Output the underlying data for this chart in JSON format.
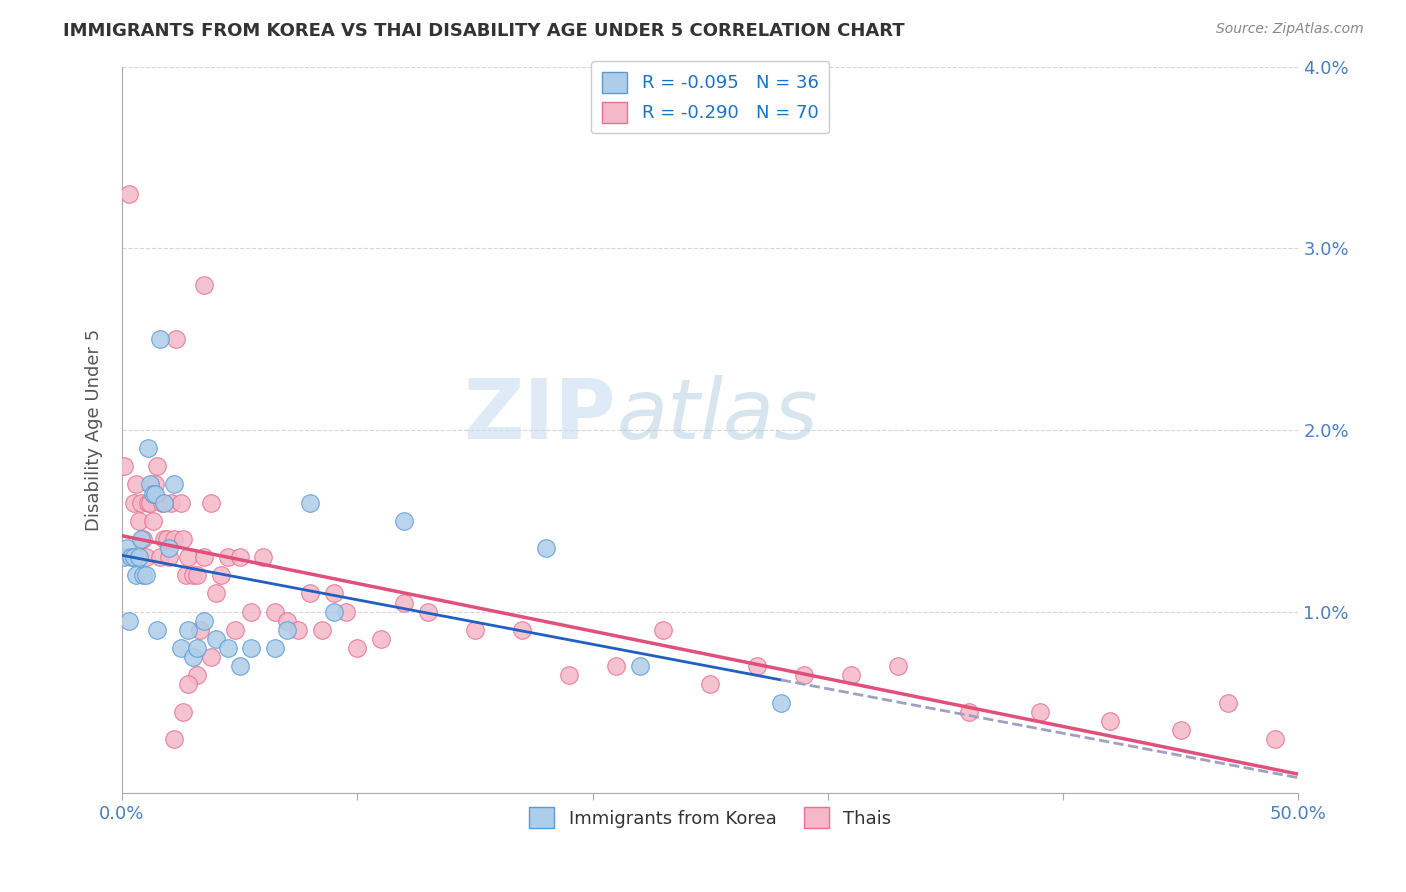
{
  "title": "IMMIGRANTS FROM KOREA VS THAI DISABILITY AGE UNDER 5 CORRELATION CHART",
  "source": "Source: ZipAtlas.com",
  "ylabel": "Disability Age Under 5",
  "x_min": 0.0,
  "x_max": 0.5,
  "y_min": 0.0,
  "y_max": 0.04,
  "x_ticks": [
    0.0,
    0.1,
    0.2,
    0.3,
    0.4,
    0.5
  ],
  "x_tick_labels_bottom": [
    "0.0%",
    "",
    "",
    "",
    "",
    "50.0%"
  ],
  "y_ticks": [
    0.0,
    0.01,
    0.02,
    0.03,
    0.04
  ],
  "y_tick_labels_right": [
    "",
    "1.0%",
    "2.0%",
    "3.0%",
    "4.0%"
  ],
  "korea_color": "#aecde8",
  "korea_edge_color": "#5b9bd5",
  "thai_color": "#f4b8c8",
  "thai_edge_color": "#e87090",
  "korea_line_color": "#2060c0",
  "thai_line_color": "#e0507a",
  "korea_dash_color": "#a0a0c0",
  "korea_R": -0.095,
  "korea_N": 36,
  "thai_R": -0.29,
  "thai_N": 70,
  "legend_label_korea": "Immigrants from Korea",
  "legend_label_thai": "Thais",
  "watermark_zip": "ZIP",
  "watermark_atlas": "atlas",
  "korea_scatter_x": [
    0.001,
    0.002,
    0.003,
    0.004,
    0.005,
    0.006,
    0.007,
    0.008,
    0.009,
    0.01,
    0.011,
    0.012,
    0.013,
    0.014,
    0.015,
    0.016,
    0.018,
    0.02,
    0.022,
    0.025,
    0.028,
    0.03,
    0.032,
    0.035,
    0.04,
    0.045,
    0.05,
    0.055,
    0.065,
    0.07,
    0.08,
    0.09,
    0.12,
    0.18,
    0.22,
    0.28
  ],
  "korea_scatter_y": [
    0.013,
    0.0135,
    0.0095,
    0.013,
    0.013,
    0.012,
    0.013,
    0.014,
    0.012,
    0.012,
    0.019,
    0.017,
    0.0165,
    0.0165,
    0.009,
    0.025,
    0.016,
    0.0135,
    0.017,
    0.008,
    0.009,
    0.0075,
    0.008,
    0.0095,
    0.0085,
    0.008,
    0.007,
    0.008,
    0.008,
    0.009,
    0.016,
    0.01,
    0.015,
    0.0135,
    0.007,
    0.005
  ],
  "thai_scatter_x": [
    0.001,
    0.003,
    0.005,
    0.006,
    0.007,
    0.008,
    0.009,
    0.01,
    0.011,
    0.012,
    0.013,
    0.014,
    0.015,
    0.016,
    0.017,
    0.018,
    0.019,
    0.02,
    0.021,
    0.022,
    0.023,
    0.025,
    0.026,
    0.027,
    0.028,
    0.03,
    0.032,
    0.033,
    0.035,
    0.038,
    0.04,
    0.042,
    0.045,
    0.048,
    0.05,
    0.055,
    0.06,
    0.065,
    0.07,
    0.075,
    0.08,
    0.085,
    0.09,
    0.095,
    0.1,
    0.11,
    0.12,
    0.13,
    0.15,
    0.17,
    0.19,
    0.21,
    0.23,
    0.25,
    0.27,
    0.29,
    0.31,
    0.33,
    0.36,
    0.39,
    0.42,
    0.45,
    0.47,
    0.035,
    0.038,
    0.032,
    0.028,
    0.026,
    0.022,
    0.49
  ],
  "thai_scatter_y": [
    0.018,
    0.033,
    0.016,
    0.017,
    0.015,
    0.016,
    0.014,
    0.013,
    0.016,
    0.016,
    0.015,
    0.017,
    0.018,
    0.013,
    0.016,
    0.014,
    0.014,
    0.013,
    0.016,
    0.014,
    0.025,
    0.016,
    0.014,
    0.012,
    0.013,
    0.012,
    0.012,
    0.009,
    0.013,
    0.016,
    0.011,
    0.012,
    0.013,
    0.009,
    0.013,
    0.01,
    0.013,
    0.01,
    0.0095,
    0.009,
    0.011,
    0.009,
    0.011,
    0.01,
    0.008,
    0.0085,
    0.0105,
    0.01,
    0.009,
    0.009,
    0.0065,
    0.007,
    0.009,
    0.006,
    0.007,
    0.0065,
    0.0065,
    0.007,
    0.0045,
    0.0045,
    0.004,
    0.0035,
    0.005,
    0.028,
    0.0075,
    0.0065,
    0.006,
    0.0045,
    0.003,
    0.003
  ]
}
